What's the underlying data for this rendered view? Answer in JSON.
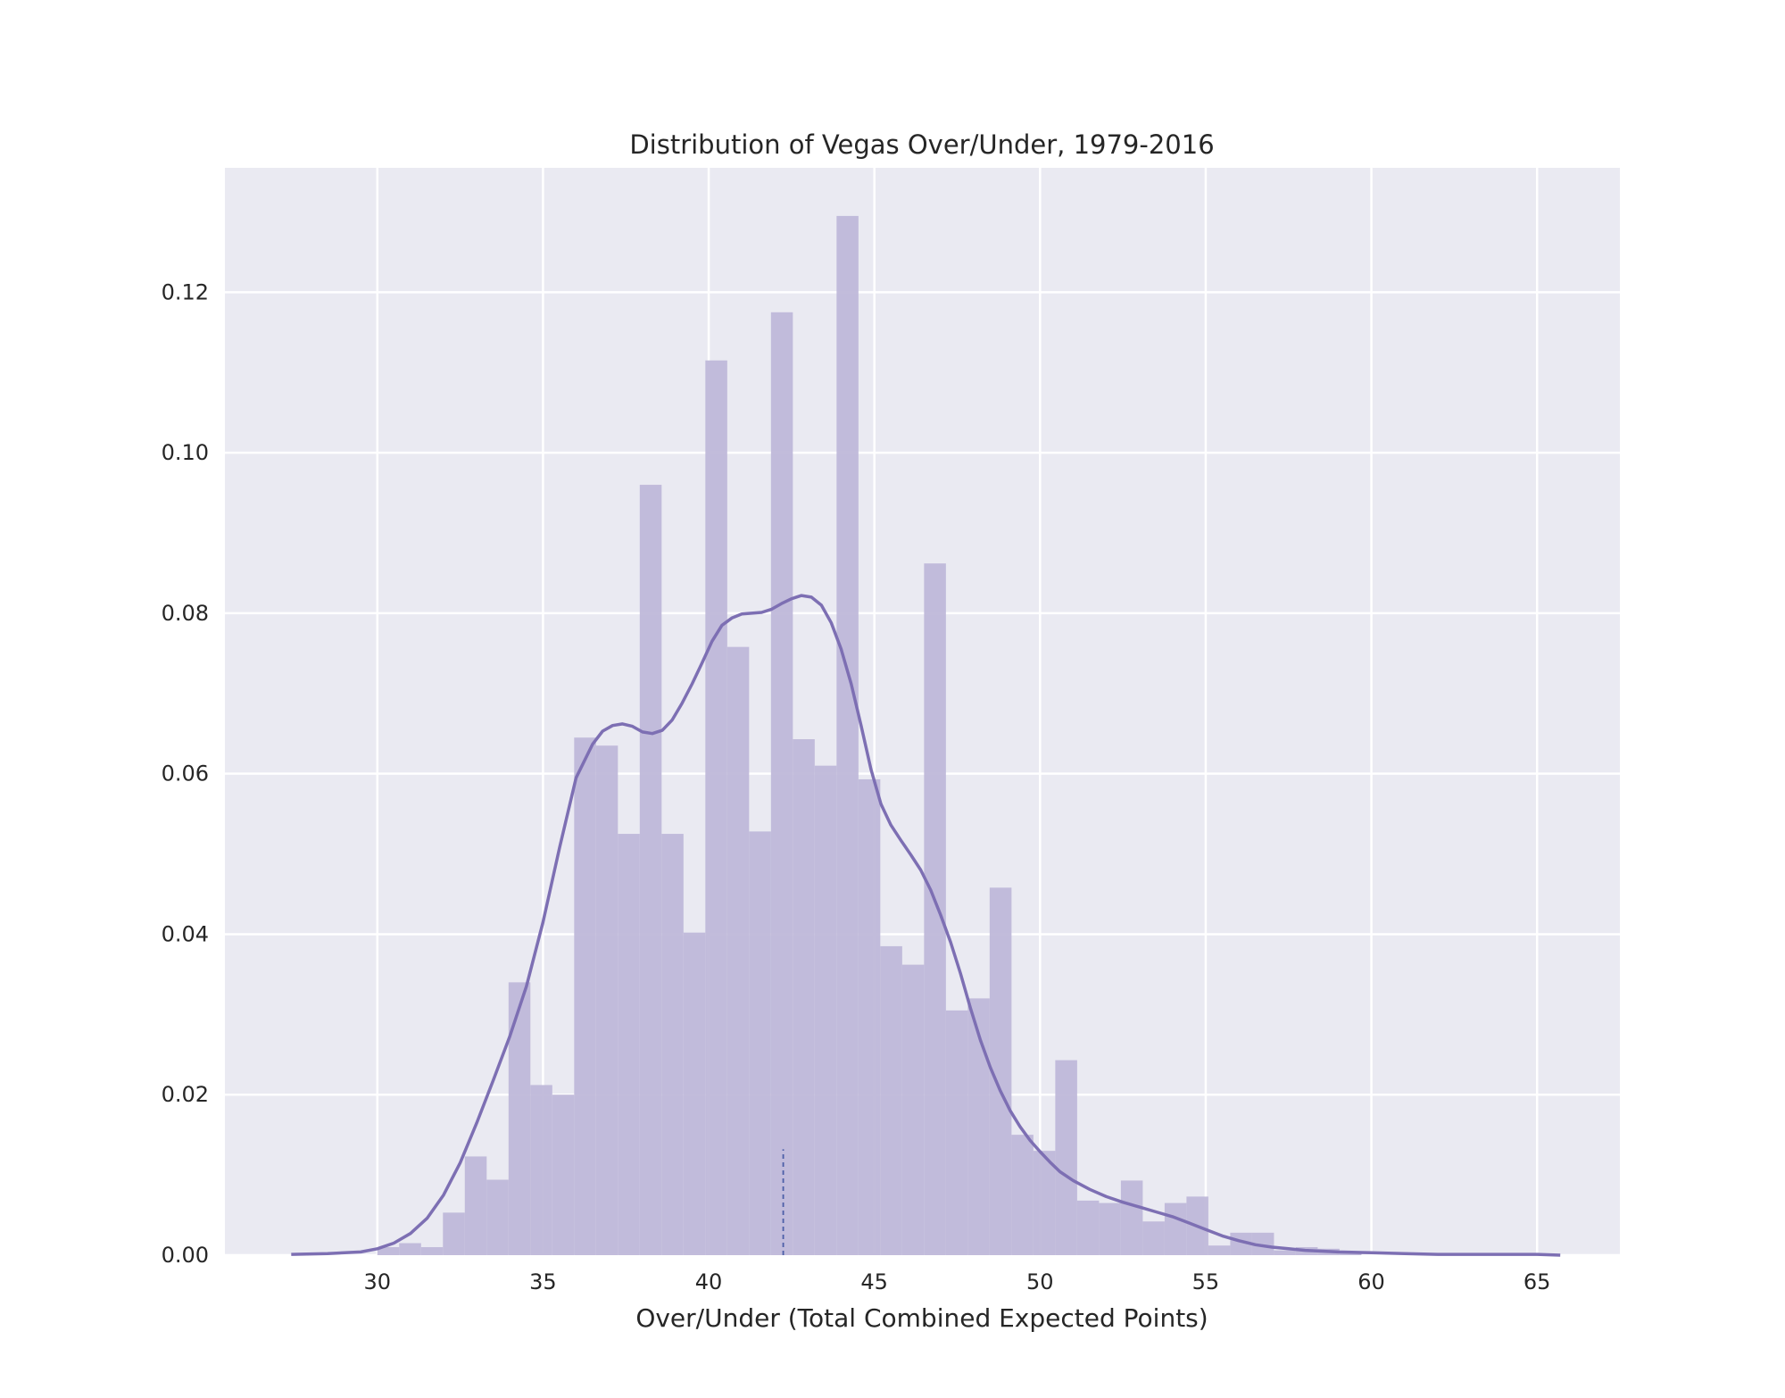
{
  "chart_data": {
    "type": "bar",
    "title": "Distribution of Vegas Over/Under, 1979-2016",
    "xlabel": "Over/Under (Total Combined Expected Points)",
    "ylabel": "",
    "xlim": [
      25.4,
      67.5
    ],
    "ylim": [
      0,
      0.1355
    ],
    "xticks": [
      "30",
      "35",
      "40",
      "45",
      "50",
      "55",
      "60",
      "65"
    ],
    "yticks": [
      "0.00",
      "0.02",
      "0.04",
      "0.06",
      "0.08",
      "0.10",
      "0.12"
    ],
    "grid": true,
    "colors": {
      "background": "#eaeaf2",
      "bars": "#bfb8d9",
      "kde": "#7d6fb3",
      "mean_line": "#4c5fa8",
      "grid": "#ffffff"
    },
    "histogram": {
      "bin_width": 0.66,
      "bin_starts": [
        30.0,
        30.66,
        31.32,
        31.98,
        32.64,
        33.3,
        33.96,
        34.62,
        35.28,
        35.94,
        36.6,
        37.26,
        37.92,
        38.58,
        39.24,
        39.9,
        40.56,
        41.22,
        41.88,
        42.54,
        43.2,
        43.86,
        44.52,
        45.18,
        45.84,
        46.5,
        47.16,
        47.82,
        48.48,
        49.14,
        49.8,
        50.46,
        51.12,
        51.78,
        52.44,
        53.1,
        53.76,
        54.42,
        55.08,
        55.74,
        56.4,
        57.06,
        57.72,
        58.38,
        59.04
      ],
      "values": [
        0.001,
        0.0015,
        0.001,
        0.0053,
        0.0123,
        0.0094,
        0.034,
        0.0212,
        0.02,
        0.0645,
        0.0635,
        0.0525,
        0.096,
        0.0525,
        0.0402,
        0.1115,
        0.0758,
        0.0528,
        0.1175,
        0.0643,
        0.061,
        0.1295,
        0.0593,
        0.0385,
        0.0362,
        0.0862,
        0.0305,
        0.032,
        0.0458,
        0.015,
        0.013,
        0.0243,
        0.0068,
        0.0065,
        0.0093,
        0.0042,
        0.0065,
        0.0073,
        0.0012,
        0.0028,
        0.0028,
        0.0006,
        0.001,
        0.0008,
        0.0004
      ]
    },
    "kde": {
      "x": [
        27.4,
        28.5,
        29.5,
        30.0,
        30.5,
        31.0,
        31.5,
        32.0,
        32.5,
        33.0,
        33.5,
        34.0,
        34.5,
        35.0,
        35.5,
        36.0,
        36.5,
        36.8,
        37.1,
        37.4,
        37.7,
        38.0,
        38.3,
        38.6,
        38.9,
        39.2,
        39.5,
        39.8,
        40.1,
        40.4,
        40.7,
        41.0,
        41.3,
        41.6,
        41.9,
        42.2,
        42.5,
        42.8,
        43.1,
        43.4,
        43.7,
        44.0,
        44.3,
        44.6,
        44.9,
        45.2,
        45.5,
        45.8,
        46.1,
        46.4,
        46.7,
        47.0,
        47.3,
        47.6,
        47.9,
        48.2,
        48.5,
        48.8,
        49.1,
        49.4,
        49.7,
        50.0,
        50.3,
        50.6,
        51.0,
        51.5,
        52.0,
        52.5,
        53.0,
        53.5,
        54.0,
        54.5,
        55.0,
        55.5,
        56.0,
        56.5,
        57.0,
        57.5,
        58.0,
        58.5,
        59.0,
        60.0,
        61.0,
        62.0,
        63.0,
        64.0,
        65.0,
        65.7
      ],
      "y": [
        0.0001,
        0.0002,
        0.0004,
        0.0008,
        0.0015,
        0.0027,
        0.0046,
        0.0075,
        0.0115,
        0.0165,
        0.0218,
        0.0273,
        0.0335,
        0.0415,
        0.0508,
        0.0595,
        0.0637,
        0.0653,
        0.066,
        0.0662,
        0.0659,
        0.0652,
        0.065,
        0.0654,
        0.0667,
        0.0688,
        0.0712,
        0.0738,
        0.0765,
        0.0785,
        0.0794,
        0.0799,
        0.08,
        0.0801,
        0.0805,
        0.0812,
        0.0818,
        0.0822,
        0.082,
        0.081,
        0.0788,
        0.0755,
        0.0712,
        0.066,
        0.0605,
        0.0562,
        0.0536,
        0.0517,
        0.0499,
        0.048,
        0.0455,
        0.0424,
        0.039,
        0.0351,
        0.0308,
        0.0268,
        0.0234,
        0.0205,
        0.018,
        0.016,
        0.0143,
        0.0129,
        0.0116,
        0.0104,
        0.0093,
        0.0082,
        0.0073,
        0.0066,
        0.006,
        0.0054,
        0.0048,
        0.004,
        0.0032,
        0.0024,
        0.0018,
        0.0013,
        0.001,
        0.0008,
        0.0006,
        0.0005,
        0.0004,
        0.0003,
        0.0002,
        0.0001,
        0.0001,
        0.0001,
        0.0001,
        0.0
      ]
    },
    "mean_line": {
      "x": 42.25,
      "height": 0.0132
    }
  }
}
